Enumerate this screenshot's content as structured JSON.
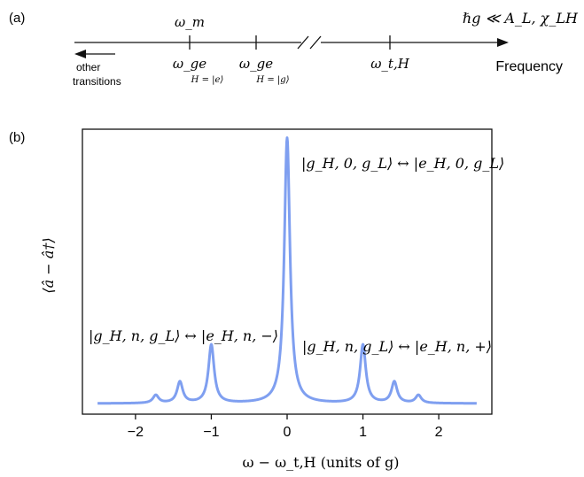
{
  "panel_a": {
    "label": "(a)",
    "condition": "ℏg ≪ A_L, χ_LH",
    "axis_label": "Frequency",
    "left_arrow_label_1": "other",
    "left_arrow_label_2": "transitions",
    "markers": [
      {
        "top": "ω_m",
        "bottom": "ω_ge",
        "sub": "H = |e⟩"
      },
      {
        "top": "",
        "bottom": "ω_ge",
        "sub": "H = |g⟩"
      },
      {
        "top": "",
        "bottom": "ω_t,H",
        "sub": ""
      }
    ]
  },
  "panel_b": {
    "label": "(b)"
  },
  "chart_data": {
    "type": "line",
    "xlabel": "ω − ω_t,H  (units of g)",
    "ylabel": "⟨â − â†⟩",
    "xlim": [
      -2.7,
      2.7
    ],
    "xticks": [
      -2,
      -1,
      0,
      1,
      2
    ],
    "xtick_labels": [
      "−2",
      "−1",
      "0",
      "1",
      "2"
    ],
    "yticks": [],
    "line_color": "#7f9ff0",
    "peaks": [
      {
        "x": -1.732,
        "height": 0.03
      },
      {
        "x": -1.414,
        "height": 0.08
      },
      {
        "x": -1.0,
        "height": 0.22
      },
      {
        "x": 0.0,
        "height": 1.0
      },
      {
        "x": 1.0,
        "height": 0.22
      },
      {
        "x": 1.414,
        "height": 0.08
      },
      {
        "x": 1.732,
        "height": 0.03
      }
    ],
    "annotations": [
      {
        "text": "|g_H, 0, g_L⟩ ↔ |e_H, 0, g_L⟩"
      },
      {
        "text": "|g_H, n, g_L⟩ ↔ |e_H, n, −⟩"
      },
      {
        "text": "|g_H, n, g_L⟩ ↔ |e_H, n, +⟩"
      }
    ]
  }
}
